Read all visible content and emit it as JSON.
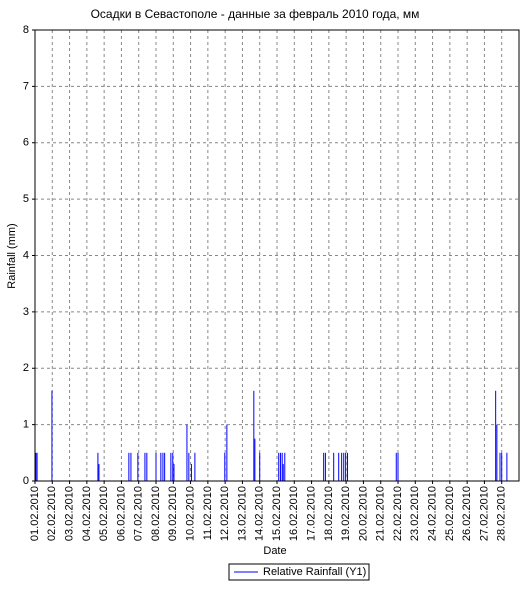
{
  "chart_data": {
    "type": "bar",
    "title": "Осадки в Севастополе - данные за февраль 2010 года, мм",
    "x_label": "Date",
    "y_label": "Rainfall (mm)",
    "series": [
      {
        "name": "Relative Rainfall (Y1)",
        "color": "#0000ff",
        "x": [
          1.05,
          1.12,
          1.98,
          4.64,
          4.7,
          6.43,
          6.55,
          6.95,
          7.36,
          7.47,
          8.0,
          8.28,
          8.4,
          8.5,
          8.86,
          8.97,
          9.04,
          9.79,
          9.9,
          10.05,
          10.25,
          11.98,
          12.1,
          13.66,
          13.72,
          14.0,
          15.1,
          15.2,
          15.3,
          15.36,
          15.45,
          17.7,
          17.8,
          18.28,
          18.57,
          18.74,
          18.86,
          18.97,
          19.08,
          21.9,
          22.0,
          27.65,
          27.72,
          27.9,
          28.0,
          28.3
        ],
        "values": [
          0.5,
          0.5,
          1.6,
          0.5,
          0.3,
          0.5,
          0.5,
          0.5,
          0.5,
          0.5,
          0.5,
          0.5,
          0.5,
          0.5,
          0.5,
          0.5,
          0.3,
          1.0,
          0.5,
          0.3,
          0.5,
          0.5,
          1.0,
          1.6,
          0.75,
          0.5,
          0.5,
          0.5,
          0.5,
          0.3,
          0.5,
          0.5,
          0.5,
          0.5,
          0.5,
          0.5,
          0.5,
          0.5,
          0.5,
          0.5,
          0.5,
          1.6,
          1.0,
          0.5,
          0.5,
          0.5
        ]
      }
    ],
    "xlim": [
      1,
      29
    ],
    "ylim": [
      0,
      8
    ],
    "xticks": [
      {
        "value": 1,
        "label": "01.02.2010"
      },
      {
        "value": 2,
        "label": "02.02.2010"
      },
      {
        "value": 3,
        "label": "03.02.2010"
      },
      {
        "value": 4,
        "label": "04.02.2010"
      },
      {
        "value": 5,
        "label": "05.02.2010"
      },
      {
        "value": 6,
        "label": "06.02.2010"
      },
      {
        "value": 7,
        "label": "07.02.2010"
      },
      {
        "value": 8,
        "label": "08.02.2010"
      },
      {
        "value": 9,
        "label": "09.02.2010"
      },
      {
        "value": 10,
        "label": "10.02.2010"
      },
      {
        "value": 11,
        "label": "11.02.2010"
      },
      {
        "value": 12,
        "label": "12.02.2010"
      },
      {
        "value": 13,
        "label": "13.02.2010"
      },
      {
        "value": 14,
        "label": "14.02.2010"
      },
      {
        "value": 15,
        "label": "15.02.2010"
      },
      {
        "value": 16,
        "label": "16.02.2010"
      },
      {
        "value": 17,
        "label": "17.02.2010"
      },
      {
        "value": 18,
        "label": "18.02.2010"
      },
      {
        "value": 19,
        "label": "19.02.2010"
      },
      {
        "value": 20,
        "label": "20.02.2010"
      },
      {
        "value": 21,
        "label": "21.02.2010"
      },
      {
        "value": 22,
        "label": "22.02.2010"
      },
      {
        "value": 23,
        "label": "23.02.2010"
      },
      {
        "value": 24,
        "label": "24.02.2010"
      },
      {
        "value": 25,
        "label": "25.02.2010"
      },
      {
        "value": 26,
        "label": "26.02.2010"
      },
      {
        "value": 27,
        "label": "27.02.2010"
      },
      {
        "value": 28,
        "label": "28.02.2010"
      }
    ],
    "yticks": [
      0,
      1,
      2,
      3,
      4,
      5,
      6,
      7,
      8
    ],
    "grid": true
  }
}
